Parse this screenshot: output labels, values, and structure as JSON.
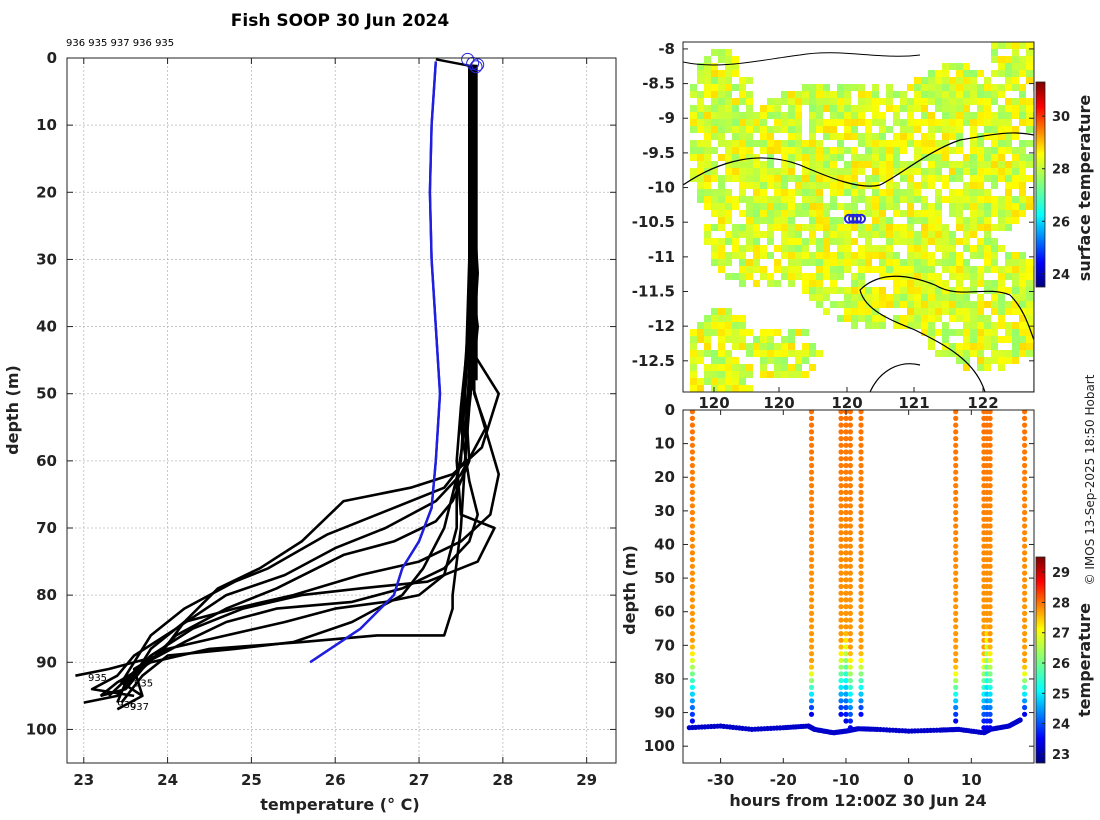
{
  "chart_data": [
    {
      "type": "line",
      "title": "Fish SOOP 30 Jun 2024",
      "top_note": "936 935 937 936 935",
      "xlabel": "temperature (° C)",
      "ylabel": "depth (m)",
      "xlim": [
        22.8,
        29.35
      ],
      "ylim": [
        105,
        0
      ],
      "xticks": [
        23,
        24,
        25,
        26,
        27,
        28,
        29
      ],
      "yticks": [
        0,
        10,
        20,
        30,
        40,
        50,
        60,
        70,
        80,
        90,
        100
      ],
      "grid": true,
      "profile_labels": [
        "935",
        "935",
        "936",
        "937"
      ],
      "series": [
        {
          "name": "mean (blue)",
          "color": "#1f1fdd",
          "points": [
            [
              27.2,
              0.5
            ],
            [
              27.15,
              10
            ],
            [
              27.13,
              20
            ],
            [
              27.15,
              30
            ],
            [
              27.2,
              40
            ],
            [
              27.25,
              50
            ],
            [
              27.2,
              60
            ],
            [
              27.15,
              67
            ],
            [
              27.0,
              72
            ],
            [
              26.8,
              76
            ],
            [
              26.7,
              80
            ],
            [
              26.3,
              85
            ],
            [
              25.7,
              90
            ]
          ]
        },
        {
          "name": "profile 1",
          "color": "#000000",
          "points": [
            [
              27.6,
              1
            ],
            [
              27.65,
              10
            ],
            [
              27.6,
              30
            ],
            [
              27.65,
              44
            ],
            [
              27.95,
              50
            ],
            [
              27.75,
              58
            ],
            [
              27.4,
              62
            ],
            [
              26.9,
              64
            ],
            [
              26.1,
              66
            ],
            [
              25.6,
              72
            ],
            [
              25.1,
              76
            ],
            [
              24.6,
              79
            ],
            [
              24.2,
              84
            ],
            [
              23.9,
              89
            ],
            [
              23.3,
              91
            ],
            [
              22.9,
              92
            ]
          ]
        },
        {
          "name": "profile 2",
          "color": "#000000",
          "points": [
            [
              27.62,
              1
            ],
            [
              27.65,
              20
            ],
            [
              27.6,
              30
            ],
            [
              27.7,
              40
            ],
            [
              27.6,
              52
            ],
            [
              27.55,
              60
            ],
            [
              27.3,
              64
            ],
            [
              26.5,
              68
            ],
            [
              25.9,
              71
            ],
            [
              25.2,
              76
            ],
            [
              24.8,
              78
            ],
            [
              24.2,
              82
            ],
            [
              23.8,
              86
            ],
            [
              23.6,
              90
            ],
            [
              23.45,
              93
            ],
            [
              23.7,
              95
            ]
          ]
        },
        {
          "name": "profile 3",
          "color": "#000000",
          "points": [
            [
              27.65,
              1
            ],
            [
              27.68,
              10
            ],
            [
              27.65,
              30
            ],
            [
              27.66,
              50
            ],
            [
              27.8,
              55
            ],
            [
              27.5,
              62
            ],
            [
              27.2,
              66
            ],
            [
              26.6,
              70
            ],
            [
              26.0,
              73
            ],
            [
              25.4,
              77
            ],
            [
              24.7,
              80
            ],
            [
              24.1,
              85
            ],
            [
              23.6,
              89
            ],
            [
              23.4,
              92
            ],
            [
              23.1,
              94
            ],
            [
              23.6,
              95
            ]
          ]
        },
        {
          "name": "profile 4",
          "color": "#000000",
          "points": [
            [
              27.63,
              1
            ],
            [
              27.64,
              20
            ],
            [
              27.7,
              32
            ],
            [
              27.62,
              48
            ],
            [
              27.95,
              62
            ],
            [
              27.85,
              68
            ],
            [
              27.5,
              72
            ],
            [
              27.0,
              75
            ],
            [
              26.3,
              77
            ],
            [
              25.5,
              80
            ],
            [
              24.8,
              82
            ],
            [
              24.2,
              84
            ],
            [
              23.8,
              88
            ],
            [
              23.6,
              92
            ],
            [
              23.4,
              95
            ],
            [
              23.0,
              96
            ]
          ]
        },
        {
          "name": "profile 5",
          "color": "#000000",
          "points": [
            [
              27.6,
              1
            ],
            [
              27.62,
              20
            ],
            [
              27.6,
              40
            ],
            [
              27.5,
              52
            ],
            [
              27.45,
              60
            ],
            [
              27.5,
              68
            ],
            [
              27.9,
              70
            ],
            [
              27.7,
              75
            ],
            [
              27.1,
              78
            ],
            [
              26.3,
              79
            ],
            [
              25.6,
              80
            ],
            [
              24.9,
              82
            ],
            [
              24.3,
              85
            ],
            [
              23.8,
              89
            ],
            [
              23.55,
              92
            ],
            [
              23.3,
              95
            ]
          ]
        },
        {
          "name": "profile 6",
          "color": "#000000",
          "points": [
            [
              27.6,
              1
            ],
            [
              27.6,
              30
            ],
            [
              27.55,
              50
            ],
            [
              27.6,
              60
            ],
            [
              27.4,
              66
            ],
            [
              27.2,
              69
            ],
            [
              26.7,
              72
            ],
            [
              26.1,
              74
            ],
            [
              25.3,
              79
            ],
            [
              24.7,
              82
            ],
            [
              24.1,
              86
            ],
            [
              23.7,
              91
            ],
            [
              23.5,
              94
            ],
            [
              23.2,
              95
            ]
          ]
        },
        {
          "name": "profile 7",
          "color": "#000000",
          "points": [
            [
              27.62,
              1
            ],
            [
              27.64,
              30
            ],
            [
              27.5,
              55
            ],
            [
              27.6,
              63
            ],
            [
              27.7,
              68
            ],
            [
              27.6,
              72
            ],
            [
              27.3,
              76
            ],
            [
              26.8,
              79
            ],
            [
              26.2,
              81
            ],
            [
              25.3,
              82
            ],
            [
              24.7,
              84
            ],
            [
              24.2,
              87
            ],
            [
              23.75,
              90
            ],
            [
              23.5,
              93
            ],
            [
              23.4,
              96
            ]
          ]
        },
        {
          "name": "profile 8",
          "color": "#000000",
          "points": [
            [
              27.64,
              1
            ],
            [
              27.66,
              30
            ],
            [
              27.65,
              45
            ],
            [
              27.55,
              55
            ],
            [
              27.45,
              63
            ],
            [
              27.45,
              70
            ],
            [
              27.3,
              77
            ],
            [
              27.0,
              80
            ],
            [
              26.6,
              81
            ],
            [
              26.0,
              82
            ],
            [
              25.4,
              84
            ],
            [
              24.7,
              86
            ],
            [
              24.0,
              88
            ],
            [
              23.6,
              91
            ],
            [
              23.7,
              95
            ],
            [
              23.4,
              97
            ]
          ]
        },
        {
          "name": "profile 9",
          "color": "#000000",
          "points": [
            [
              27.6,
              1
            ],
            [
              27.6,
              40
            ],
            [
              27.5,
              60
            ],
            [
              27.3,
              70
            ],
            [
              27.05,
              76
            ],
            [
              26.8,
              80
            ],
            [
              26.2,
              84
            ],
            [
              25.5,
              87
            ],
            [
              24.8,
              88
            ],
            [
              24.0,
              89
            ],
            [
              23.7,
              92
            ],
            [
              23.45,
              96
            ]
          ]
        },
        {
          "name": "profile 10",
          "color": "#000000",
          "points": [
            [
              27.63,
              1
            ],
            [
              27.62,
              40
            ],
            [
              27.55,
              60
            ],
            [
              27.5,
              70
            ],
            [
              27.4,
              80
            ],
            [
              27.4,
              82
            ],
            [
              27.3,
              86
            ],
            [
              26.5,
              86
            ],
            [
              25.6,
              87
            ],
            [
              24.5,
              88
            ],
            [
              23.8,
              90
            ],
            [
              23.4,
              93
            ],
            [
              23.2,
              95
            ]
          ]
        }
      ]
    },
    {
      "type": "heatmap",
      "ylabel_ticks": [
        "-8",
        "-8.5",
        "-9",
        "-9.5",
        "-10",
        "-10.5",
        "-11",
        "-11.5",
        "-12",
        "-12.5"
      ],
      "xlabel_ticks": [
        "120",
        "120",
        "120",
        "121",
        "122"
      ],
      "colorbar_label": "surface temperature",
      "colorbar_ticks": [
        24,
        26,
        28,
        30
      ],
      "colorbar_range": [
        23.5,
        31.3
      ],
      "marker": {
        "lon_frac": 0.49,
        "lat": -10.45,
        "color": "#2222dd"
      }
    },
    {
      "type": "scatter",
      "xlabel": "hours from 12:00Z 30 Jun 24",
      "ylabel": "depth (m)",
      "xlim": [
        -36,
        20
      ],
      "ylim": [
        105,
        0
      ],
      "xticks": [
        -30,
        -20,
        -10,
        0,
        10
      ],
      "yticks": [
        0,
        10,
        20,
        30,
        40,
        50,
        60,
        70,
        80,
        90,
        100
      ],
      "colorbar_label": "temperature",
      "colorbar_ticks": [
        23,
        24,
        25,
        26,
        27,
        28,
        29
      ],
      "colorbar_range": [
        22.7,
        29.5
      ],
      "casts": [
        {
          "t": -34.5,
          "bottom": 94,
          "thermocline": 70
        },
        {
          "t": -15.5,
          "bottom": 91,
          "thermocline": 76
        },
        {
          "t": -10.8,
          "bottom": 92,
          "thermocline": 70
        },
        {
          "t": -10.0,
          "bottom": 93,
          "thermocline": 66
        },
        {
          "t": -9.3,
          "bottom": 95,
          "thermocline": 72
        },
        {
          "t": -7.6,
          "bottom": 92,
          "thermocline": 72
        },
        {
          "t": 7.5,
          "bottom": 93,
          "thermocline": 76
        },
        {
          "t": 12.0,
          "bottom": 95,
          "thermocline": 72
        },
        {
          "t": 12.5,
          "bottom": 96,
          "thermocline": 64
        },
        {
          "t": 13.0,
          "bottom": 95,
          "thermocline": 70
        },
        {
          "t": 18.5,
          "bottom": 91,
          "thermocline": 76
        }
      ],
      "bottom_track": [
        [
          -35,
          94.5
        ],
        [
          -30,
          94
        ],
        [
          -25,
          95
        ],
        [
          -20,
          94.5
        ],
        [
          -16,
          94
        ],
        [
          -15,
          95
        ],
        [
          -12,
          96
        ],
        [
          -10,
          95.5
        ],
        [
          -8,
          94.8
        ],
        [
          -5,
          95
        ],
        [
          0,
          95.5
        ],
        [
          5,
          95.2
        ],
        [
          8,
          95
        ],
        [
          12,
          96
        ],
        [
          13,
          95
        ],
        [
          16,
          94
        ],
        [
          18,
          92
        ]
      ]
    }
  ],
  "side_note": "© IMOS 13-Sep-2025 18:50 Hobart"
}
